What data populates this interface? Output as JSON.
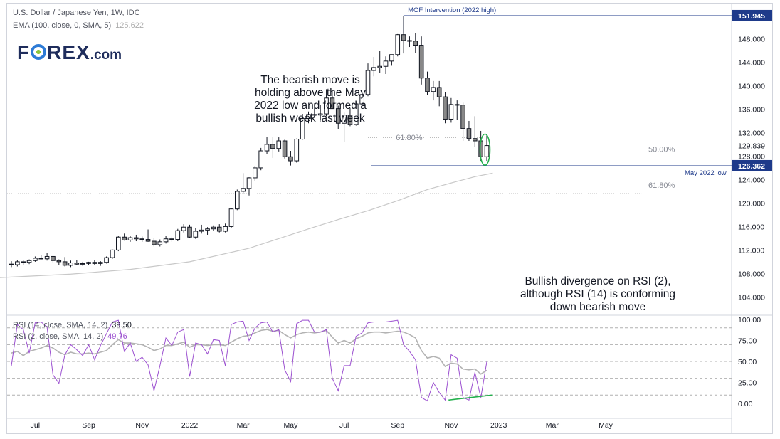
{
  "header": {
    "symbol_line": "U.S. Dollar / Japanese Yen, 1W, IDC",
    "ema_label": "EMA (100, close, 0, SMA, 5)",
    "ema_value": "125.622",
    "ema_color": "#c8c8c8"
  },
  "logo": {
    "text_a": "F",
    "text_b": "REX",
    "text_c": ".com",
    "icon": "globe-icon"
  },
  "annotations": {
    "bearish_note": [
      "The bearish move is",
      "holding above the May",
      "2022 low and formed a",
      "bullish week last week"
    ],
    "divergence_note": [
      "Bullish divergence on RSI (2),",
      "although RSI (14) is conforming",
      "down bearish move"
    ],
    "mof_label": "MOF Intervention (2022 high)",
    "fib_upper": "61.80%",
    "fib_mid": "50.00%",
    "fib_lower": "61.80%",
    "may_low_label": "May 2022 low"
  },
  "price_badges": {
    "high": "151.945",
    "last": "129.839",
    "may_low": "126.362",
    "badge_color": "#1e3a8a"
  },
  "rsi_legend": {
    "rsi14_label": "RSI (14, close, SMA, 14, 2)",
    "rsi14_value": "39.50",
    "rsi2_label": "RSI (2, close, SMA, 14, 2)",
    "rsi2_value": "49.76",
    "rsi14_color": "#b3b3b3",
    "rsi2_color": "#9b4fd0",
    "divergence_color": "#22b14c"
  },
  "chart_data": {
    "type": "candlestick",
    "price_axis_ticks": [
      "152.000",
      "148.000",
      "144.000",
      "140.000",
      "136.000",
      "132.000",
      "128.000",
      "124.000",
      "120.000",
      "116.000",
      "112.000",
      "108.000",
      "104.000"
    ],
    "price_axis_values": [
      152,
      148,
      144,
      140,
      136,
      132,
      128,
      124,
      120,
      116,
      112,
      108,
      104
    ],
    "price_range": [
      101.5,
      154
    ],
    "rsi_axis_ticks": [
      "100.00",
      "75.00",
      "50.00",
      "25.00",
      "0.00"
    ],
    "rsi_axis_values": [
      100,
      75,
      50,
      25,
      0
    ],
    "rsi_levels_dashed": [
      90,
      70,
      50,
      30,
      10
    ],
    "time_labels": [
      "Jul",
      "Sep",
      "Nov",
      "2022",
      "Mar",
      "May",
      "Jul",
      "Sep",
      "Nov",
      "2023",
      "Mar",
      "May"
    ],
    "time_label_weeks": [
      4,
      13,
      22,
      30,
      39,
      47,
      56,
      65,
      74,
      82,
      91,
      100
    ],
    "levels": {
      "mof_high": 151.945,
      "may_2022_low": 126.362,
      "fib_upper_618": 131.2,
      "fib_50": 127.5,
      "fib_lower_618": 121.6
    },
    "ohlc": [
      [
        109.6,
        110.1,
        109.1,
        109.5
      ],
      [
        109.5,
        110.3,
        109.2,
        110.0
      ],
      [
        110.0,
        110.3,
        109.5,
        109.9
      ],
      [
        109.9,
        110.4,
        109.6,
        110.2
      ],
      [
        110.2,
        110.9,
        110.0,
        110.6
      ],
      [
        110.6,
        111.1,
        110.4,
        110.5
      ],
      [
        110.5,
        111.5,
        110.2,
        110.9
      ],
      [
        110.9,
        111.0,
        109.8,
        110.2
      ],
      [
        110.2,
        110.4,
        109.5,
        110.0
      ],
      [
        110.0,
        110.8,
        109.2,
        109.4
      ],
      [
        109.4,
        110.2,
        109.1,
        109.8
      ],
      [
        109.8,
        110.3,
        109.5,
        109.6
      ],
      [
        109.6,
        110.0,
        109.3,
        109.7
      ],
      [
        109.7,
        110.0,
        109.4,
        109.9
      ],
      [
        109.9,
        110.3,
        109.5,
        109.7
      ],
      [
        109.7,
        110.1,
        109.3,
        109.9
      ],
      [
        109.9,
        110.9,
        109.7,
        110.7
      ],
      [
        110.7,
        112.1,
        110.5,
        112.0
      ],
      [
        112.0,
        114.4,
        111.8,
        114.2
      ],
      [
        114.2,
        114.8,
        113.6,
        113.7
      ],
      [
        113.7,
        114.4,
        113.4,
        114.1
      ],
      [
        114.1,
        114.6,
        113.5,
        113.9
      ],
      [
        113.9,
        114.3,
        113.4,
        113.8
      ],
      [
        113.8,
        115.5,
        113.4,
        113.5
      ],
      [
        113.5,
        114.0,
        112.6,
        112.9
      ],
      [
        112.9,
        113.8,
        112.6,
        113.4
      ],
      [
        113.4,
        114.4,
        113.1,
        113.9
      ],
      [
        113.9,
        114.3,
        113.4,
        113.8
      ],
      [
        113.8,
        115.6,
        113.5,
        115.3
      ],
      [
        115.3,
        116.4,
        115.0,
        115.9
      ],
      [
        115.9,
        116.3,
        114.0,
        114.2
      ],
      [
        114.2,
        115.8,
        113.9,
        115.2
      ],
      [
        115.2,
        116.3,
        114.8,
        115.4
      ],
      [
        115.4,
        115.9,
        114.6,
        115.6
      ],
      [
        115.6,
        116.2,
        115.3,
        115.9
      ],
      [
        115.9,
        116.4,
        115.0,
        115.2
      ],
      [
        115.2,
        116.5,
        115.0,
        116.0
      ],
      [
        116.0,
        119.2,
        115.8,
        119.0
      ],
      [
        119.0,
        122.3,
        118.8,
        122.0
      ],
      [
        122.0,
        125.1,
        121.6,
        122.5
      ],
      [
        122.5,
        124.4,
        121.3,
        124.3
      ],
      [
        124.3,
        126.3,
        123.8,
        126.0
      ],
      [
        126.0,
        129.4,
        125.6,
        128.9
      ],
      [
        128.9,
        131.3,
        128.3,
        130.0
      ],
      [
        130.0,
        131.3,
        127.7,
        129.3
      ],
      [
        129.3,
        131.2,
        128.8,
        130.6
      ],
      [
        130.6,
        130.8,
        127.6,
        127.9
      ],
      [
        127.9,
        128.9,
        126.4,
        127.2
      ],
      [
        127.2,
        131.0,
        126.9,
        130.9
      ],
      [
        130.9,
        135.2,
        130.8,
        134.4
      ],
      [
        134.4,
        135.6,
        133.6,
        135.1
      ],
      [
        135.1,
        137.0,
        134.5,
        135.0
      ],
      [
        135.0,
        136.7,
        134.2,
        135.2
      ],
      [
        135.2,
        139.4,
        134.8,
        137.9
      ],
      [
        137.9,
        139.3,
        136.5,
        136.1
      ],
      [
        136.1,
        136.6,
        132.6,
        133.6
      ],
      [
        133.6,
        135.4,
        130.4,
        135.0
      ],
      [
        135.0,
        136.2,
        133.1,
        133.4
      ],
      [
        133.4,
        137.3,
        133.2,
        136.9
      ],
      [
        136.9,
        139.0,
        136.6,
        138.5
      ],
      [
        138.5,
        143.8,
        138.2,
        142.6
      ],
      [
        142.6,
        144.9,
        141.6,
        143.1
      ],
      [
        143.1,
        145.9,
        142.2,
        143.3
      ],
      [
        143.3,
        145.0,
        142.0,
        144.2
      ],
      [
        144.2,
        145.2,
        143.4,
        145.3
      ],
      [
        145.3,
        148.8,
        145.0,
        148.7
      ],
      [
        148.7,
        151.9,
        145.5,
        147.7
      ],
      [
        147.7,
        148.4,
        146.6,
        147.6
      ],
      [
        147.6,
        149.0,
        145.6,
        146.9
      ],
      [
        146.9,
        148.4,
        140.2,
        141.3
      ],
      [
        141.3,
        142.4,
        138.4,
        139.0
      ],
      [
        139.0,
        140.8,
        137.5,
        139.7
      ],
      [
        139.7,
        140.8,
        136.5,
        138.1
      ],
      [
        138.1,
        138.9,
        133.6,
        134.3
      ],
      [
        134.3,
        137.9,
        133.7,
        136.8
      ],
      [
        136.8,
        137.5,
        134.2,
        136.7
      ],
      [
        136.7,
        137.1,
        130.6,
        132.7
      ],
      [
        132.7,
        134.0,
        130.6,
        131.0
      ],
      [
        131.0,
        134.8,
        129.6,
        130.6
      ],
      [
        130.6,
        132.3,
        127.2,
        127.9
      ],
      [
        127.9,
        131.6,
        127.2,
        129.8
      ]
    ],
    "ema_series": [
      [
        0,
        107.4
      ],
      [
        10,
        107.9
      ],
      [
        20,
        108.7
      ],
      [
        30,
        110.0
      ],
      [
        40,
        112.3
      ],
      [
        50,
        115.6
      ],
      [
        55,
        117.2
      ],
      [
        60,
        118.7
      ],
      [
        65,
        120.4
      ],
      [
        70,
        122.3
      ],
      [
        75,
        123.7
      ],
      [
        78,
        124.5
      ],
      [
        81,
        125.1
      ]
    ],
    "rsi14_series": [
      60,
      62,
      57,
      62,
      64,
      66,
      69,
      66,
      61,
      58,
      61,
      59,
      59,
      60,
      59,
      61,
      63,
      70,
      76,
      72,
      72,
      71,
      70,
      67,
      63,
      65,
      69,
      69,
      71,
      73,
      67,
      70,
      70,
      69,
      70,
      70,
      69,
      73,
      77,
      80,
      81,
      84,
      87,
      88,
      86,
      87,
      82,
      78,
      82,
      84,
      85,
      84,
      85,
      87,
      79,
      72,
      75,
      72,
      77,
      80,
      84,
      85,
      85,
      84,
      85,
      86,
      85,
      82,
      78,
      63,
      54,
      56,
      54,
      44,
      48,
      47,
      41,
      40,
      41,
      35,
      39.5
    ],
    "rsi2_series": [
      45,
      94,
      88,
      60,
      96,
      97,
      91,
      34,
      24,
      58,
      70,
      64,
      57,
      70,
      52,
      69,
      83,
      97,
      99,
      62,
      72,
      50,
      55,
      46,
      15,
      45,
      78,
      69,
      85,
      88,
      32,
      72,
      70,
      59,
      76,
      75,
      45,
      94,
      97,
      98,
      75,
      90,
      96,
      97,
      85,
      88,
      40,
      26,
      95,
      99,
      99,
      85,
      85,
      88,
      30,
      15,
      45,
      45,
      80,
      84,
      96,
      97,
      97,
      97,
      98,
      99,
      70,
      62,
      52,
      7,
      3,
      25,
      13,
      4,
      58,
      54,
      7,
      4,
      37,
      7,
      49.76
    ],
    "rsi2_divergence": {
      "from": [
        75,
        4
      ],
      "to": [
        81,
        10
      ]
    }
  }
}
